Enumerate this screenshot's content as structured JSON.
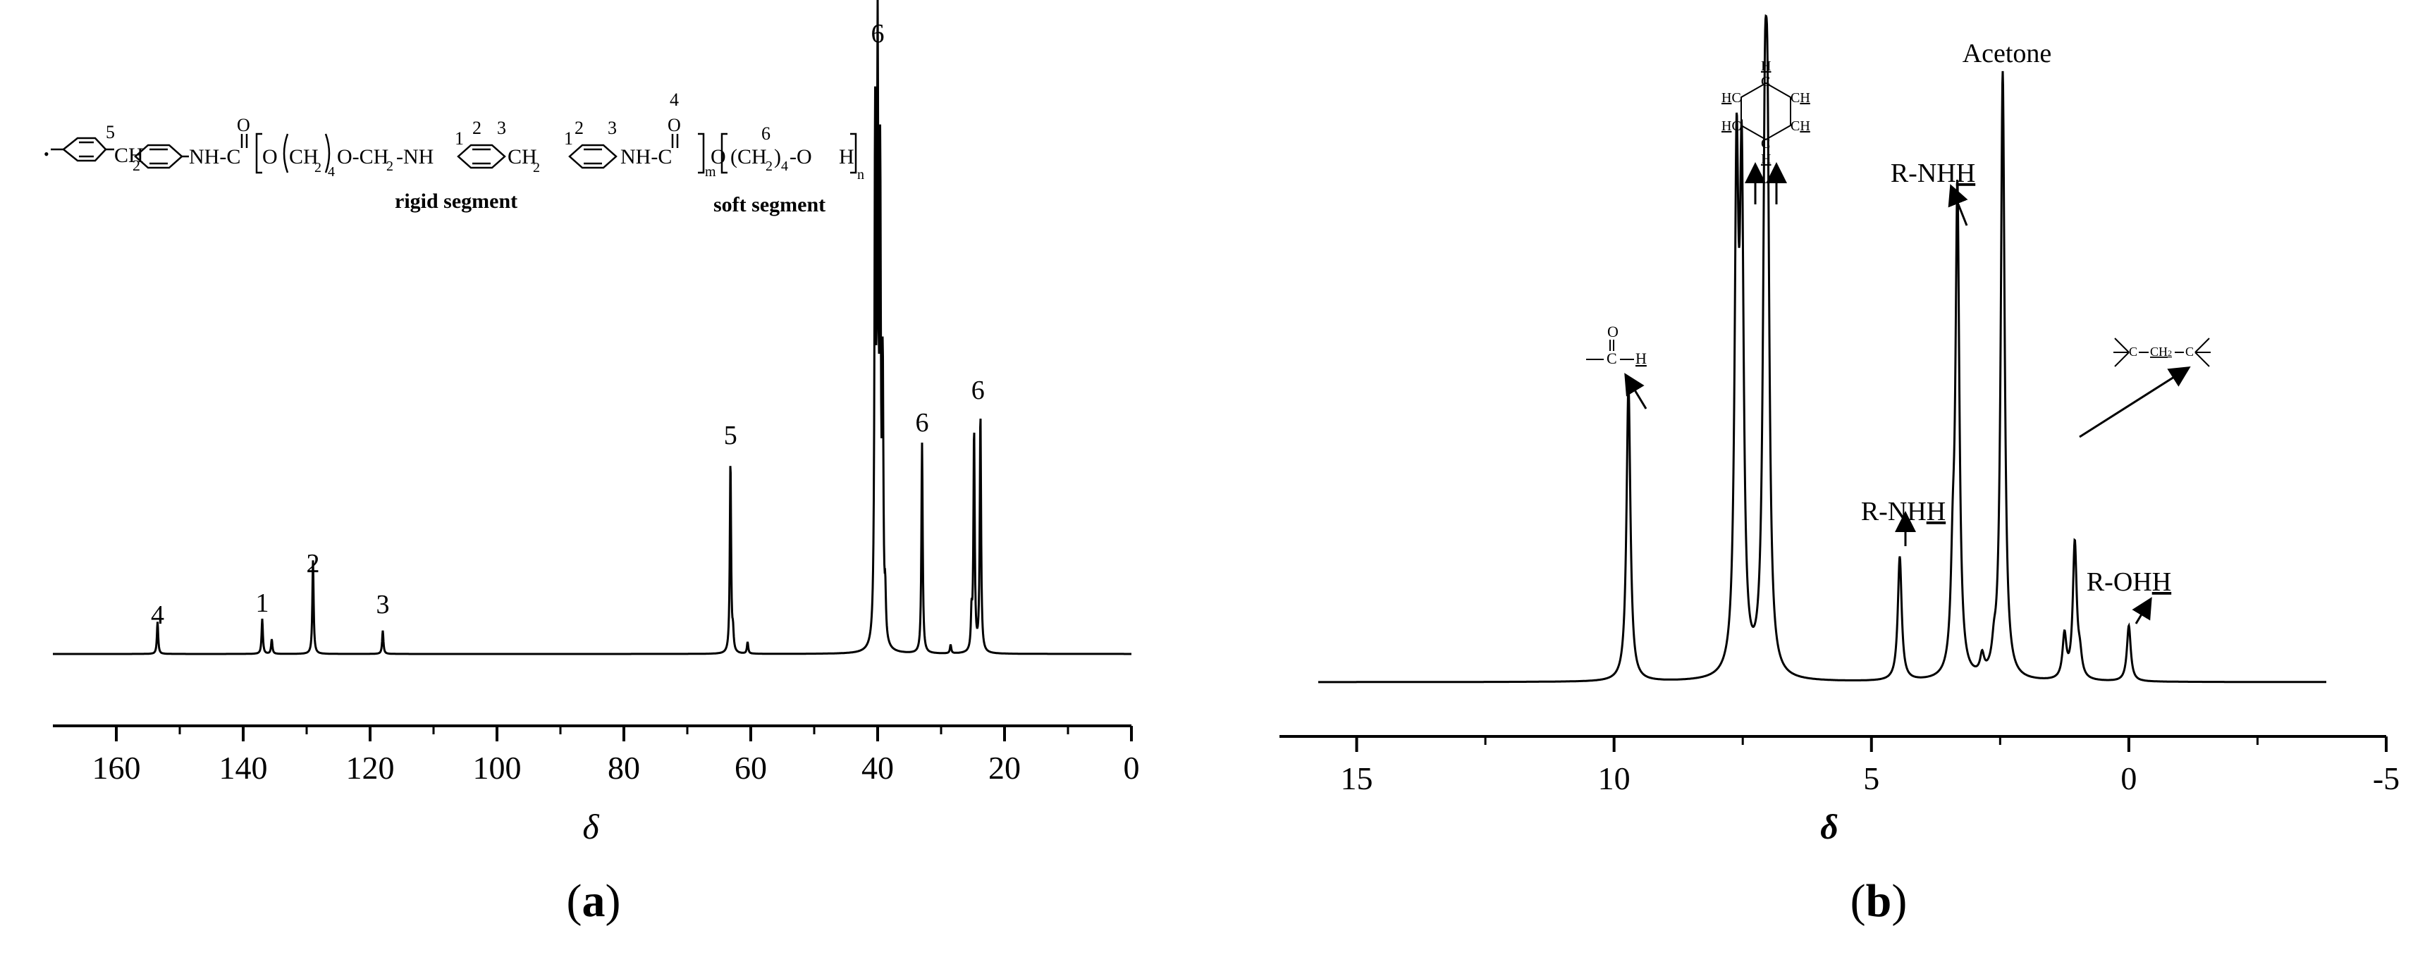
{
  "chart_data": [
    {
      "panel": "a",
      "type": "line",
      "panel_label_prefix": "(",
      "panel_label": "a",
      "panel_label_suffix": ")",
      "xlabel": "δ",
      "ylabel": "",
      "xlim": [
        170,
        0
      ],
      "x_reversed": true,
      "x_ticks": [
        160,
        140,
        120,
        100,
        80,
        60,
        40,
        20,
        0
      ],
      "grid": false,
      "peaks": [
        {
          "x": 153.5,
          "h": 0.055
        },
        {
          "x": 137.0,
          "h": 0.06
        },
        {
          "x": 135.5,
          "h": 0.025
        },
        {
          "x": 129.0,
          "h": 0.16
        },
        {
          "x": 118.0,
          "h": 0.04
        },
        {
          "x": 63.2,
          "h": 0.33
        },
        {
          "x": 62.8,
          "h": 0.03
        },
        {
          "x": 60.5,
          "h": 0.02
        },
        {
          "x": 40.4,
          "h": 0.87
        },
        {
          "x": 40.0,
          "h": 0.98
        },
        {
          "x": 39.6,
          "h": 0.77
        },
        {
          "x": 39.2,
          "h": 0.45
        },
        {
          "x": 38.8,
          "h": 0.07
        },
        {
          "x": 33.0,
          "h": 0.36
        },
        {
          "x": 28.5,
          "h": 0.015
        },
        {
          "x": 25.2,
          "h": 0.06
        },
        {
          "x": 24.8,
          "h": 0.38
        },
        {
          "x": 23.8,
          "h": 0.41
        }
      ],
      "annotations": [
        {
          "text": "4",
          "x": 153.5
        },
        {
          "text": "1",
          "x": 137.0
        },
        {
          "text": "2",
          "x": 129.0
        },
        {
          "text": "3",
          "x": 118.0
        },
        {
          "text": "5",
          "x": 63.2
        },
        {
          "text": "6",
          "x": 40.0
        },
        {
          "text": "6",
          "x": 33.0
        },
        {
          "text": "6",
          "x": 24.2
        }
      ],
      "structure_labels": {
        "rigid": "rigid segment",
        "soft": "soft segment",
        "ch2": "CH",
        "nh_c": "NH-C",
        "o_ch2_nh": "O-CH",
        "nh": "-NH",
        "c_o": "O",
        "ch2_4_o": "(CH",
        "o_h": "-O",
        "h": "H",
        "m": "m",
        "n": "n",
        "num1": "1",
        "num2": "2",
        "num3": "3",
        "num4": "4",
        "num5": "5",
        "num6": "6"
      }
    },
    {
      "panel": "b",
      "type": "line",
      "panel_label_prefix": "(",
      "panel_label": "b",
      "panel_label_suffix": ")",
      "xlabel": "δ",
      "ylabel": "",
      "xlim": [
        16.5,
        -5.0
      ],
      "x_reversed": true,
      "x_ticks": [
        15,
        10,
        5,
        0,
        -5
      ],
      "x_tick_labels": [
        "15",
        "10",
        "5",
        "0",
        "-5"
      ],
      "grid": false,
      "peaks": [
        {
          "x": 9.72,
          "h": 0.48
        },
        {
          "x": 7.62,
          "h": 0.78
        },
        {
          "x": 7.52,
          "h": 0.76
        },
        {
          "x": 7.07,
          "h": 0.7
        },
        {
          "x": 7.02,
          "h": 0.69
        },
        {
          "x": 4.45,
          "h": 0.2
        },
        {
          "x": 3.42,
          "h": 0.14
        },
        {
          "x": 3.33,
          "h": 0.78
        },
        {
          "x": 2.85,
          "h": 0.03
        },
        {
          "x": 2.62,
          "h": 0.03
        },
        {
          "x": 2.45,
          "h": 0.98
        },
        {
          "x": 1.25,
          "h": 0.07
        },
        {
          "x": 1.05,
          "h": 0.22
        },
        {
          "x": 0.95,
          "h": 0.03
        },
        {
          "x": 0.0,
          "h": 0.09
        }
      ],
      "annotations": [
        {
          "text": "Acetone",
          "x": 2.45
        },
        {
          "text": "R-NH",
          "underlined": "H",
          "x": 3.33
        },
        {
          "text": "R-NH",
          "underlined": "H",
          "x": 4.45
        },
        {
          "text": "R-OH",
          "underlined": "H",
          "x": 0.0
        }
      ],
      "aldehyde_label": {
        "o": "O",
        "c": "C",
        "h": "H"
      },
      "benzene_label": {
        "ch": "CH",
        "hc": "HC",
        "h": "H",
        "c": "C"
      },
      "methylene_label": {
        "c": "C",
        "ch2": "CH",
        "sub": "2"
      }
    }
  ]
}
